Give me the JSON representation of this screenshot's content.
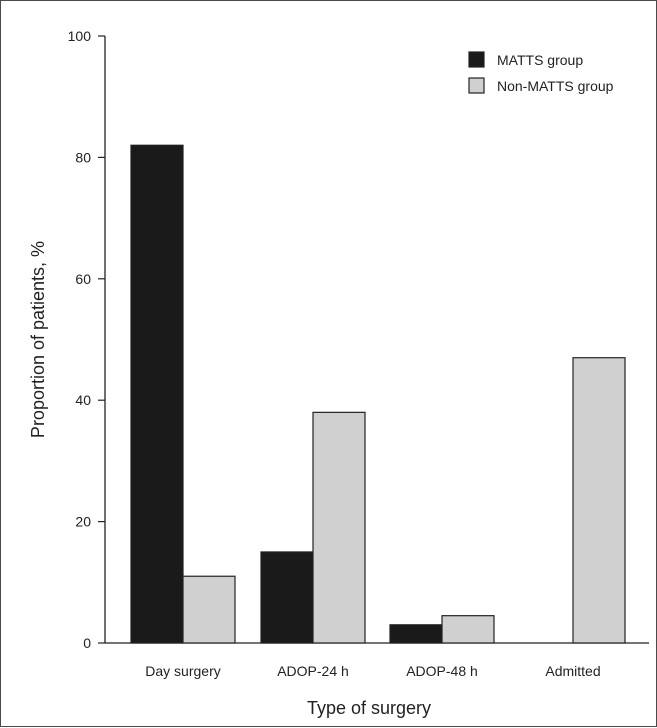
{
  "chart_data": {
    "type": "bar",
    "title": "",
    "xlabel": "Type of surgery",
    "ylabel": "Proportion of patients, %",
    "ylim": [
      0,
      100
    ],
    "yticks": [
      0,
      20,
      40,
      60,
      80,
      100
    ],
    "categories": [
      "Day surgery",
      "ADOP-24 h",
      "ADOP-48 h",
      "Admitted"
    ],
    "series": [
      {
        "name": "MATTS group",
        "values": [
          82,
          15,
          3,
          0
        ],
        "color": "#1a1a1a"
      },
      {
        "name": "Non-MATTS group",
        "values": [
          11,
          38,
          4.5,
          47
        ],
        "color": "#d0d0d0"
      }
    ],
    "legend_position": "top-right",
    "grid": false
  }
}
